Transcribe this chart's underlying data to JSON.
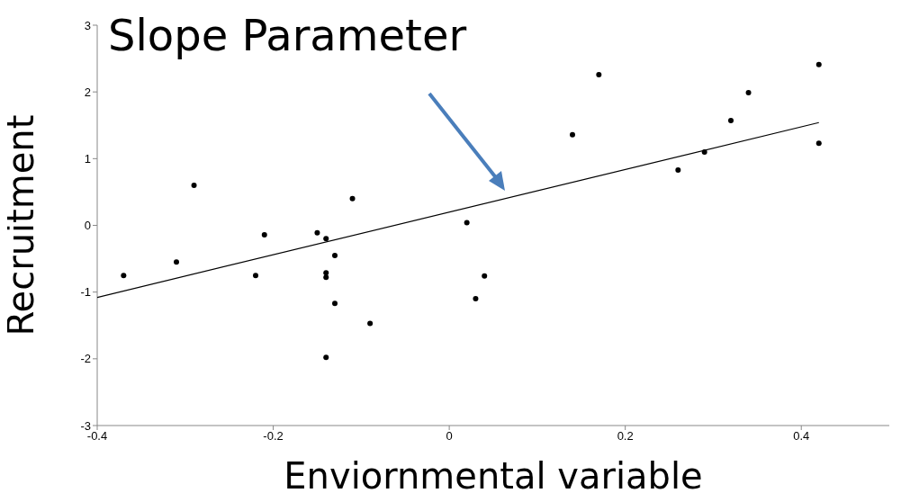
{
  "chart_data": {
    "type": "scatter",
    "xlabel": "Enviornmental variable",
    "ylabel": "Recruitment",
    "xlim": [
      -0.4,
      0.5
    ],
    "xticks": [
      -0.4,
      -0.2,
      0,
      0.2,
      0.4
    ],
    "ylim": [
      -3,
      3
    ],
    "yticks": [
      -3,
      -2,
      -1,
      0,
      1,
      2,
      3
    ],
    "grid": false,
    "legend": false,
    "annotations": [
      "Slope Parameter"
    ],
    "series": [
      {
        "marker": "circle",
        "color": "#000000",
        "x": [
          -0.37,
          -0.31,
          -0.29,
          -0.22,
          -0.21,
          -0.15,
          -0.14,
          -0.14,
          -0.14,
          -0.13,
          -0.13,
          -0.14,
          -0.11,
          -0.09,
          0.02,
          0.03,
          0.04,
          0.14,
          0.17,
          0.26,
          0.29,
          0.32,
          0.34,
          0.42,
          0.42
        ],
        "values": [
          -0.75,
          -0.55,
          0.6,
          -0.75,
          -0.14,
          -0.11,
          -0.2,
          -0.71,
          -0.78,
          -0.45,
          -1.17,
          -1.98,
          0.4,
          -1.47,
          0.04,
          -1.1,
          -0.76,
          1.36,
          2.26,
          0.83,
          1.1,
          1.57,
          1.99,
          2.41,
          1.23
        ]
      },
      {
        "type": "line",
        "marker": "none",
        "color": "#000000",
        "x": [
          -0.4,
          0.42
        ],
        "values": [
          -1.08,
          1.54
        ]
      }
    ]
  }
}
